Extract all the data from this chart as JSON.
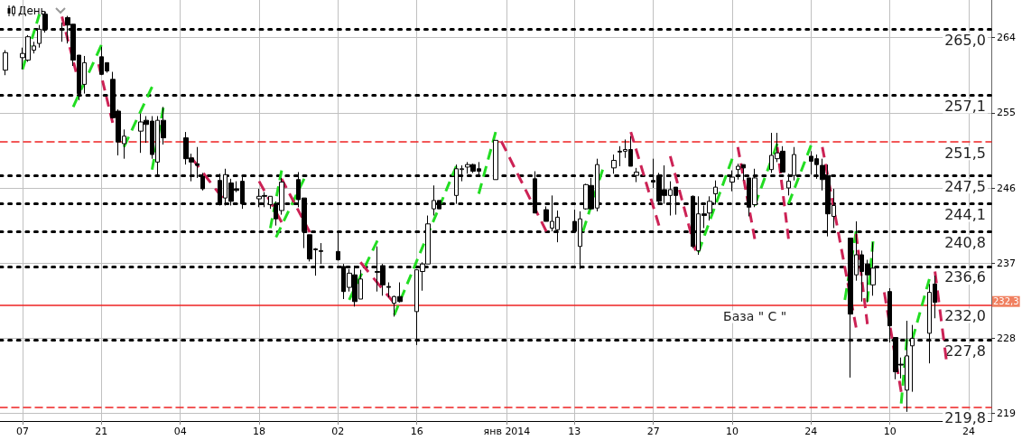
{
  "chart_data": {
    "type": "candlestick",
    "title": "День",
    "x": [
      "2013-10-04",
      "2013-10-07",
      "2013-10-08",
      "2013-10-09",
      "2013-10-10",
      "2013-10-11",
      "2013-10-14",
      "2013-10-15",
      "2013-10-16",
      "2013-10-17",
      "2013-10-18",
      "2013-10-21",
      "2013-10-22",
      "2013-10-23",
      "2013-10-24",
      "2013-10-25",
      "2013-10-28",
      "2013-10-29",
      "2013-10-30",
      "2013-10-31",
      "2013-11-01",
      "2013-11-05",
      "2013-11-06",
      "2013-11-07",
      "2013-11-08",
      "2013-11-11",
      "2013-11-12",
      "2013-11-13",
      "2013-11-14",
      "2013-11-15",
      "2013-11-18",
      "2013-11-19",
      "2013-11-20",
      "2013-11-21",
      "2013-11-22",
      "2013-11-25",
      "2013-11-26",
      "2013-11-27",
      "2013-11-28",
      "2013-11-29",
      "2013-12-02",
      "2013-12-03",
      "2013-12-04",
      "2013-12-05",
      "2013-12-06",
      "2013-12-09",
      "2013-12-10",
      "2013-12-11",
      "2013-12-12",
      "2013-12-13",
      "2013-12-16",
      "2013-12-17",
      "2013-12-18",
      "2013-12-19",
      "2013-12-20",
      "2013-12-23",
      "2013-12-24",
      "2013-12-25",
      "2013-12-26",
      "2013-12-27",
      "2013-12-30",
      "2014-01-06",
      "2014-01-08",
      "2014-01-09",
      "2014-01-10",
      "2014-01-13",
      "2014-01-14",
      "2014-01-15",
      "2014-01-16",
      "2014-01-17",
      "2014-01-20",
      "2014-01-21",
      "2014-01-22",
      "2014-01-23",
      "2014-01-24",
      "2014-01-27",
      "2014-01-28",
      "2014-01-29",
      "2014-01-30",
      "2014-01-31",
      "2014-02-03",
      "2014-02-04",
      "2014-02-05",
      "2014-02-06",
      "2014-02-07",
      "2014-02-10",
      "2014-02-11",
      "2014-02-12",
      "2014-02-13",
      "2014-02-14",
      "2014-02-17",
      "2014-02-18",
      "2014-02-19",
      "2014-02-20",
      "2014-02-21",
      "2014-02-24",
      "2014-02-25",
      "2014-02-26",
      "2014-02-27",
      "2014-02-28",
      "2014-03-03",
      "2014-03-04",
      "2014-03-05",
      "2014-03-06",
      "2014-03-07",
      "2014-03-10",
      "2014-03-11",
      "2014-03-12",
      "2014-03-13",
      "2014-03-14",
      "2014-03-17",
      "2014-03-18"
    ],
    "ohlc": [
      [
        260.1,
        262.5,
        259.5,
        262.2
      ],
      [
        261.6,
        262.8,
        260.2,
        262.1
      ],
      [
        261.3,
        264.3,
        261.1,
        264.1
      ],
      [
        262.5,
        263.5,
        262.1,
        263.0
      ],
      [
        263.3,
        265.5,
        262.8,
        265.0
      ],
      [
        266.8,
        267.1,
        264.6,
        265.0
      ],
      [
        265.1,
        265.8,
        263.5,
        265.0
      ],
      [
        266.4,
        266.6,
        263.3,
        265.5
      ],
      [
        265.6,
        265.6,
        260.6,
        261.3
      ],
      [
        261.9,
        261.9,
        256.5,
        257.3
      ],
      [
        258.4,
        261.8,
        257.3,
        261.0
      ],
      [
        261.7,
        262.9,
        259.5,
        259.6
      ],
      [
        261.0,
        261.0,
        259.8,
        260.0
      ],
      [
        259.0,
        259.9,
        254.3,
        254.4
      ],
      [
        255.2,
        255.4,
        249.9,
        251.5
      ],
      [
        251.3,
        253.0,
        249.5,
        252.2
      ],
      [
        252.8,
        254.9,
        250.2,
        253.9
      ],
      [
        254.1,
        254.6,
        251.4,
        253.6
      ],
      [
        254.0,
        254.6,
        249.5,
        250.0
      ],
      [
        249.1,
        254.6,
        247.5,
        254.1
      ],
      [
        254.1,
        255.7,
        251.2,
        252.0
      ],
      [
        252.0,
        252.7,
        248.8,
        249.5
      ],
      [
        249.6,
        250.1,
        246.8,
        249.1
      ],
      [
        248.9,
        250.9,
        247.2,
        248.7
      ],
      [
        247.4,
        247.8,
        245.7,
        245.9
      ],
      [
        246.9,
        247.7,
        243.9,
        244.0
      ],
      [
        244.8,
        248.3,
        243.9,
        247.6
      ],
      [
        246.6,
        247.1,
        243.9,
        244.4
      ],
      [
        245.9,
        246.8,
        245.5,
        245.7
      ],
      [
        246.8,
        247.3,
        243.5,
        244.1
      ],
      [
        244.7,
        245.9,
        243.7,
        245.0
      ],
      [
        245.1,
        245.5,
        243.7,
        245.0
      ],
      [
        244.0,
        245.0,
        243.5,
        245.0
      ],
      [
        244.1,
        244.4,
        241.5,
        242.3
      ],
      [
        243.3,
        247.2,
        242.8,
        246.7
      ],
      [
        247.0,
        247.9,
        243.7,
        244.6
      ],
      [
        244.8,
        244.8,
        238.8,
        240.8
      ],
      [
        240.4,
        240.4,
        237.2,
        237.5
      ],
      [
        238.7,
        238.8,
        235.5,
        238.6
      ],
      [
        238.5,
        239.4,
        236.9,
        238.4
      ],
      [
        238.4,
        240.9,
        237.3,
        237.4
      ],
      [
        236.6,
        236.9,
        232.7,
        233.6
      ],
      [
        234.1,
        236.3,
        233.6,
        235.8
      ],
      [
        235.6,
        236.7,
        231.8,
        232.4
      ],
      [
        232.7,
        236.2,
        232.7,
        235.1
      ],
      [
        236.0,
        239.0,
        233.6,
        235.9
      ],
      [
        236.7,
        236.9,
        233.1,
        234.4
      ],
      [
        234.2,
        234.7,
        232.9,
        234.1
      ],
      [
        232.2,
        233.1,
        230.6,
        233.0
      ],
      [
        233.0,
        234.7,
        232.3,
        232.4
      ],
      [
        231.2,
        236.2,
        227.2,
        236.2
      ],
      [
        236.0,
        237.1,
        233.7,
        236.9
      ],
      [
        236.9,
        242.7,
        236.9,
        241.7
      ],
      [
        243.5,
        246.3,
        242.7,
        244.5
      ],
      [
        244.5,
        244.5,
        243.5,
        243.5
      ],
      [
        245.1,
        248.8,
        244.1,
        248.3
      ],
      [
        248.2,
        248.7,
        246.8,
        248.3
      ],
      [
        248.5,
        249.1,
        247.7,
        248.8
      ],
      [
        248.8,
        248.9,
        247.8,
        248.0
      ],
      [
        248.3,
        249.1,
        247.3,
        248.0
      ],
      [
        247.0,
        251.7,
        247.0,
        251.7
      ],
      [
        247.1,
        248.0,
        243.0,
        243.0
      ],
      [
        243.4,
        243.8,
        242.0,
        242.0
      ],
      [
        241.2,
        245.1,
        240.8,
        242.0
      ],
      [
        241.0,
        243.3,
        239.5,
        242.5
      ],
      [
        242.0,
        243.4,
        240.6,
        240.8
      ],
      [
        239.0,
        243.2,
        236.3,
        242.3
      ],
      [
        243.5,
        246.5,
        243.4,
        246.4
      ],
      [
        246.3,
        247.2,
        243.4,
        243.5
      ],
      [
        243.6,
        249.5,
        243.2,
        248.8
      ],
      [
        248.4,
        250.0,
        247.7,
        249.3
      ],
      [
        250.4,
        251.0,
        248.6,
        250.3
      ],
      [
        250.4,
        251.8,
        249.6,
        250.6
      ],
      [
        250.6,
        252.2,
        248.6,
        248.6
      ],
      [
        247.5,
        248.4,
        246.7,
        247.9
      ],
      [
        246.9,
        249.5,
        246.0,
        246.7
      ],
      [
        247.5,
        247.8,
        244.1,
        244.4
      ],
      [
        245.8,
        248.7,
        244.1,
        245.1
      ],
      [
        245.1,
        246.8,
        242.7,
        245.8
      ],
      [
        246.1,
        246.1,
        242.8,
        245.1
      ],
      [
        245.0,
        245.1,
        238.8,
        239.0
      ],
      [
        238.5,
        245.0,
        238.0,
        242.9
      ],
      [
        242.9,
        243.9,
        241.2,
        242.7
      ],
      [
        243.0,
        245.0,
        242.1,
        244.4
      ],
      [
        245.3,
        246.9,
        244.0,
        246.1
      ],
      [
        246.7,
        248.1,
        245.6,
        247.3
      ],
      [
        248.2,
        248.9,
        247.0,
        248.6
      ],
      [
        248.8,
        248.8,
        246.9,
        248.4
      ],
      [
        247.2,
        247.2,
        242.6,
        243.7
      ],
      [
        244.0,
        248.3,
        243.7,
        247.2
      ],
      [
        248.2,
        252.6,
        247.8,
        249.9
      ],
      [
        249.5,
        252.6,
        249.1,
        250.2
      ],
      [
        250.4,
        251.0,
        247.9,
        247.9
      ],
      [
        246.0,
        247.7,
        245.1,
        246.8
      ],
      [
        247.5,
        250.9,
        246.9,
        250.0
      ],
      [
        249.8,
        250.4,
        247.6,
        249.2
      ],
      [
        249.5,
        250.0,
        247.1,
        248.8
      ],
      [
        248.7,
        249.5,
        245.7,
        247.0
      ],
      [
        247.5,
        248.8,
        240.2,
        242.9
      ],
      [
        242.6,
        245.9,
        241.2,
        243.9
      ],
      [
        240.0,
        240.0,
        223.3,
        230.9
      ],
      [
        235.6,
        242.0,
        234.9,
        238.0
      ],
      [
        238.0,
        238.5,
        232.4,
        236.0
      ],
      [
        236.9,
        237.4,
        232.3,
        235.6
      ],
      [
        234.4,
        239.5,
        233.1,
        236.4
      ],
      [
        233.6,
        234.0,
        227.5,
        229.5
      ],
      [
        228.1,
        228.1,
        223.1,
        224.0
      ],
      [
        224.9,
        225.7,
        223.2,
        224.8
      ],
      [
        221.8,
        230.1,
        219.2,
        225.9
      ],
      [
        227.1,
        229.6,
        221.6,
        228.0
      ],
      [
        228.6,
        234.5,
        225.0,
        233.5
      ],
      [
        234.5,
        235.5,
        230.4,
        232.3
      ]
    ],
    "series": [
      {
        "type": "line",
        "color": "#22dd22",
        "x": [
          "2013-10-07",
          "2013-10-10"
        ],
        "values": [
          260.2,
          266.8
        ]
      },
      {
        "type": "line",
        "color": "#22dd22",
        "x": [
          "2013-10-16",
          "2013-10-21"
        ],
        "values": [
          255.7,
          263.1
        ]
      },
      {
        "type": "line",
        "color": "#22dd22",
        "x": [
          "2013-10-25",
          "2013-10-30"
        ],
        "values": [
          250.9,
          258.1
        ]
      },
      {
        "type": "line",
        "color": "#22dd22",
        "x": [
          "2013-10-30",
          "2013-11-01"
        ],
        "values": [
          248.2,
          255.6
        ]
      },
      {
        "type": "line",
        "color": "#22dd22",
        "x": [
          "2013-11-20",
          "2013-11-22"
        ],
        "values": [
          241.2,
          248.1
        ]
      },
      {
        "type": "line",
        "color": "#22dd22",
        "x": [
          "2013-11-21",
          "2013-11-26"
        ],
        "values": [
          240.1,
          247.1
        ]
      },
      {
        "type": "line",
        "color": "#22dd22",
        "x": [
          "2013-12-04",
          "2013-12-09"
        ],
        "values": [
          232.6,
          239.7
        ]
      },
      {
        "type": "line",
        "color": "#22dd22",
        "x": [
          "2013-12-12",
          "2013-12-23"
        ],
        "values": [
          230.8,
          248.6
        ]
      },
      {
        "type": "line",
        "color": "#22dd22",
        "x": [
          "2013-12-27",
          "2013-12-30"
        ],
        "values": [
          245.3,
          252.7
        ]
      },
      {
        "type": "line",
        "color": "#22dd22",
        "x": [
          "2014-01-14T12:00",
          "2014-01-18"
        ],
        "values": [
          240.8,
          248.2
        ]
      },
      {
        "type": "line",
        "color": "#22dd22",
        "x": [
          "2014-02-04",
          "2014-02-10"
        ],
        "values": [
          238.3,
          249.5
        ]
      },
      {
        "type": "line",
        "color": "#22dd22",
        "x": [
          "2014-02-14",
          "2014-02-18"
        ],
        "values": [
          243.9,
          251.3
        ]
      },
      {
        "type": "line",
        "color": "#22dd22",
        "x": [
          "2014-02-20",
          "2014-02-24"
        ],
        "values": [
          244.1,
          251.1
        ]
      },
      {
        "type": "line",
        "color": "#22dd22",
        "x": [
          "2014-03-02",
          "2014-03-04"
        ],
        "values": [
          232.6,
          240.8
        ]
      },
      {
        "type": "line",
        "color": "#22dd22",
        "x": [
          "2014-03-06",
          "2014-03-07"
        ],
        "values": [
          232.4,
          239.6
        ]
      },
      {
        "type": "line",
        "color": "#22dd22",
        "x": [
          "2014-03-12",
          "2014-03-13"
        ],
        "values": [
          220.2,
          227.9
        ]
      },
      {
        "type": "line",
        "color": "#22dd22",
        "x": [
          "2014-03-14",
          "2014-03-17"
        ],
        "values": [
          227.9,
          235.1
        ]
      },
      {
        "type": "line",
        "color": "#cc2255",
        "x": [
          "2013-10-14",
          "2013-10-16T12:00"
        ],
        "values": [
          266.5,
          259.9
        ]
      },
      {
        "type": "line",
        "color": "#cc2255",
        "x": [
          "2013-10-20T12:00",
          "2013-10-23"
        ],
        "values": [
          260.8,
          253.8
        ]
      },
      {
        "type": "line",
        "color": "#cc2255",
        "x": [
          "2013-11-06",
          "2013-11-11T12:00"
        ],
        "values": [
          249.6,
          244.8
        ]
      },
      {
        "type": "line",
        "color": "#cc2255",
        "x": [
          "2013-11-18",
          "2013-11-22"
        ],
        "values": [
          246.8,
          241.9
        ]
      },
      {
        "type": "line",
        "color": "#cc2255",
        "x": [
          "2013-11-22",
          "2013-11-27"
        ],
        "values": [
          247.1,
          240.7
        ]
      },
      {
        "type": "line",
        "color": "#cc2255",
        "x": [
          "2013-12-06",
          "2013-12-12"
        ],
        "values": [
          237.1,
          232.2
        ]
      },
      {
        "type": "line",
        "color": "#cc2255",
        "x": [
          "2013-12-31",
          "2014-01-08"
        ],
        "values": [
          251.6,
          240.8
        ]
      },
      {
        "type": "line",
        "color": "#cc2255",
        "x": [
          "2014-01-23",
          "2014-01-28"
        ],
        "values": [
          252.7,
          241.5
        ]
      },
      {
        "type": "line",
        "color": "#cc2255",
        "x": [
          "2014-01-30",
          "2014-02-03T12:00"
        ],
        "values": [
          249.8,
          238.5
        ]
      },
      {
        "type": "line",
        "color": "#cc2255",
        "x": [
          "2014-02-11",
          "2014-02-14"
        ],
        "values": [
          250.9,
          239.9
        ]
      },
      {
        "type": "line",
        "color": "#cc2255",
        "x": [
          "2014-02-18",
          "2014-02-20"
        ],
        "values": [
          250.9,
          239.9
        ]
      },
      {
        "type": "line",
        "color": "#cc2255",
        "x": [
          "2014-02-26",
          "2014-03-04"
        ],
        "values": [
          250.9,
          229.3
        ]
      },
      {
        "type": "line",
        "color": "#cc2255",
        "x": [
          "2014-03-04",
          "2014-03-06"
        ],
        "values": [
          240.5,
          229.7
        ]
      },
      {
        "type": "line",
        "color": "#cc2255",
        "x": [
          "2014-03-09",
          "2014-03-12"
        ],
        "values": [
          233.5,
          221.6
        ]
      },
      {
        "type": "line",
        "color": "#cc2255",
        "x": [
          "2014-03-18",
          "2014-03-20"
        ],
        "values": [
          236.0,
          225.5
        ]
      }
    ],
    "line_style": "dashed",
    "ref_lines": [
      {
        "axis": "y",
        "value": 265.0,
        "label": "265,0",
        "color": "#000000",
        "line_style": "dotted"
      },
      {
        "axis": "y",
        "value": 257.1,
        "label": "257,1",
        "color": "#000000",
        "line_style": "dotted"
      },
      {
        "axis": "y",
        "value": 251.5,
        "label": "251,5",
        "color": "#ee2222",
        "line_style": "dashed"
      },
      {
        "axis": "y",
        "value": 247.5,
        "label": "247,5",
        "color": "#000000",
        "line_style": "dotted"
      },
      {
        "axis": "y",
        "value": 244.1,
        "label": "244,1",
        "color": "#000000",
        "line_style": "dotted"
      },
      {
        "axis": "y",
        "value": 240.8,
        "label": "240,8",
        "color": "#000000",
        "line_style": "dotted"
      },
      {
        "axis": "y",
        "value": 236.6,
        "label": "236,6",
        "color": "#000000",
        "line_style": "dotted"
      },
      {
        "axis": "y",
        "value": 232.0,
        "label": "232,0",
        "color": "#ee2222",
        "line_style": "solid"
      },
      {
        "axis": "y",
        "value": 227.8,
        "label": "227,8",
        "color": "#000000",
        "line_style": "dotted"
      },
      {
        "axis": "y",
        "value": 219.8,
        "label": "219,8",
        "color": "#ee2222",
        "line_style": "dashed"
      }
    ],
    "annotations": [
      {
        "text": "База \" С \"",
        "x": "2014-02-10",
        "y": 232.0
      },
      {
        "text": "232,3",
        "y": 232.3
      }
    ],
    "xlim": [
      "2013-10-03",
      "2014-03-28"
    ],
    "xticks": [
      {
        "value": "2013-10-07",
        "label": "07"
      },
      {
        "value": "2013-10-21",
        "label": "21"
      },
      {
        "value": "2013-11-04",
        "label": "04"
      },
      {
        "value": "2013-11-18",
        "label": "18"
      },
      {
        "value": "2013-12-02",
        "label": "02"
      },
      {
        "value": "2013-12-16",
        "label": "16"
      },
      {
        "value": "2014-01",
        "label": "янв 2014"
      },
      {
        "value": "2014-01-13",
        "label": "13"
      },
      {
        "value": "2014-01-27",
        "label": "27"
      },
      {
        "value": "2014-02-10",
        "label": "10"
      },
      {
        "value": "2014-02-24",
        "label": "24"
      },
      {
        "value": "2014-03-10",
        "label": "10"
      },
      {
        "value": "2014-03-24",
        "label": "24"
      }
    ],
    "ylim": [
      218.1,
      268.5
    ],
    "yticks": [
      219,
      228,
      237,
      246,
      255,
      264
    ],
    "grid": true
  }
}
